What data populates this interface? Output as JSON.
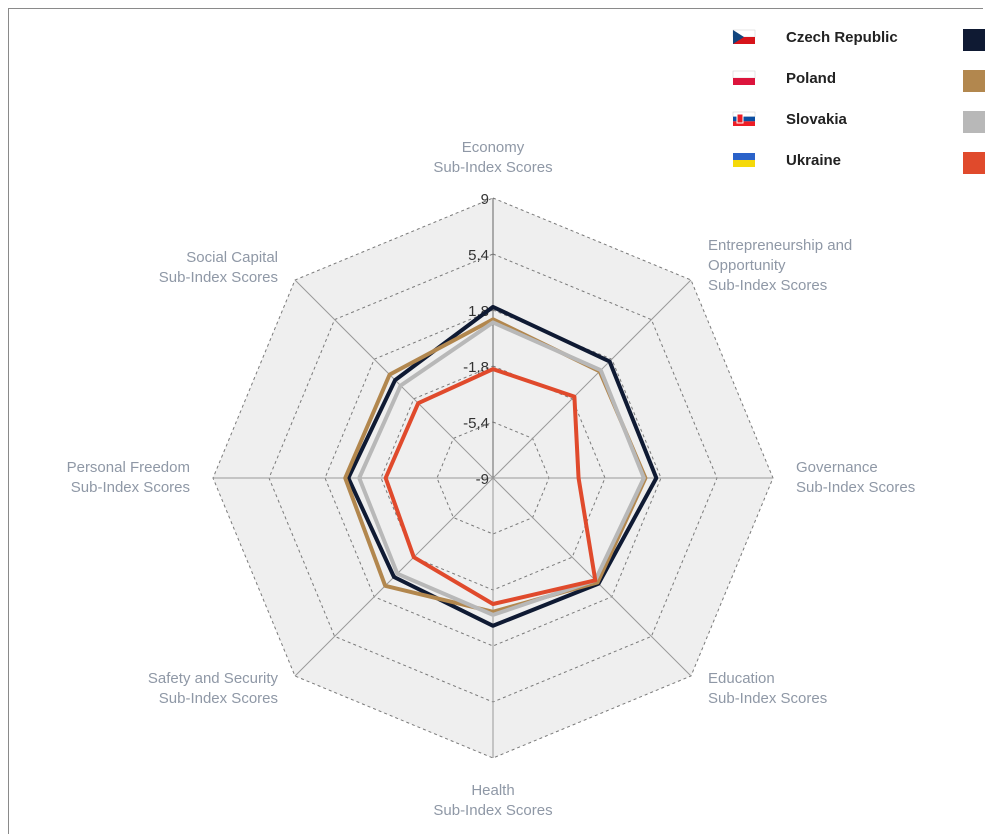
{
  "chart_data": {
    "type": "radar",
    "axes": [
      [
        "Economy",
        "Sub-Index Scores"
      ],
      [
        "Entrepreneurship and",
        "Opportunity",
        "Sub-Index Scores"
      ],
      [
        "Governance",
        "Sub-Index Scores"
      ],
      [
        "Education",
        "Sub-Index Scores"
      ],
      [
        "Health",
        "Sub-Index Scores"
      ],
      [
        "Safety and Security",
        "Sub-Index Scores"
      ],
      [
        "Personal Freedom",
        "Sub-Index Scores"
      ],
      [
        "Social Capital",
        "Sub-Index Scores"
      ]
    ],
    "scale": {
      "min": -9,
      "max": 9,
      "ticks": [
        "9",
        "5,4",
        "1,8",
        "-1,8",
        "-5,4",
        "-9"
      ]
    },
    "series": [
      {
        "name": "Czech Republic",
        "color": "#0f1a33",
        "flag": "czech",
        "values": [
          2.0,
          1.6,
          1.5,
          0.6,
          0.5,
          0.0,
          0.3,
          -0.1
        ]
      },
      {
        "name": "Poland",
        "color": "#b2874e",
        "flag": "poland",
        "values": [
          1.2,
          0.7,
          0.8,
          0.5,
          -0.4,
          0.8,
          0.5,
          0.4
        ]
      },
      {
        "name": "Slovakia",
        "color": "#b8b8b8",
        "flag": "slovakia",
        "values": [
          1.0,
          0.8,
          0.7,
          0.3,
          -0.2,
          -0.3,
          -0.4,
          -0.6
        ]
      },
      {
        "name": "Ukraine",
        "color": "#e04a2c",
        "flag": "ukraine",
        "values": [
          -2.0,
          -1.6,
          -3.5,
          0.3,
          -0.9,
          -1.8,
          -2.1,
          -2.2
        ]
      }
    ]
  }
}
